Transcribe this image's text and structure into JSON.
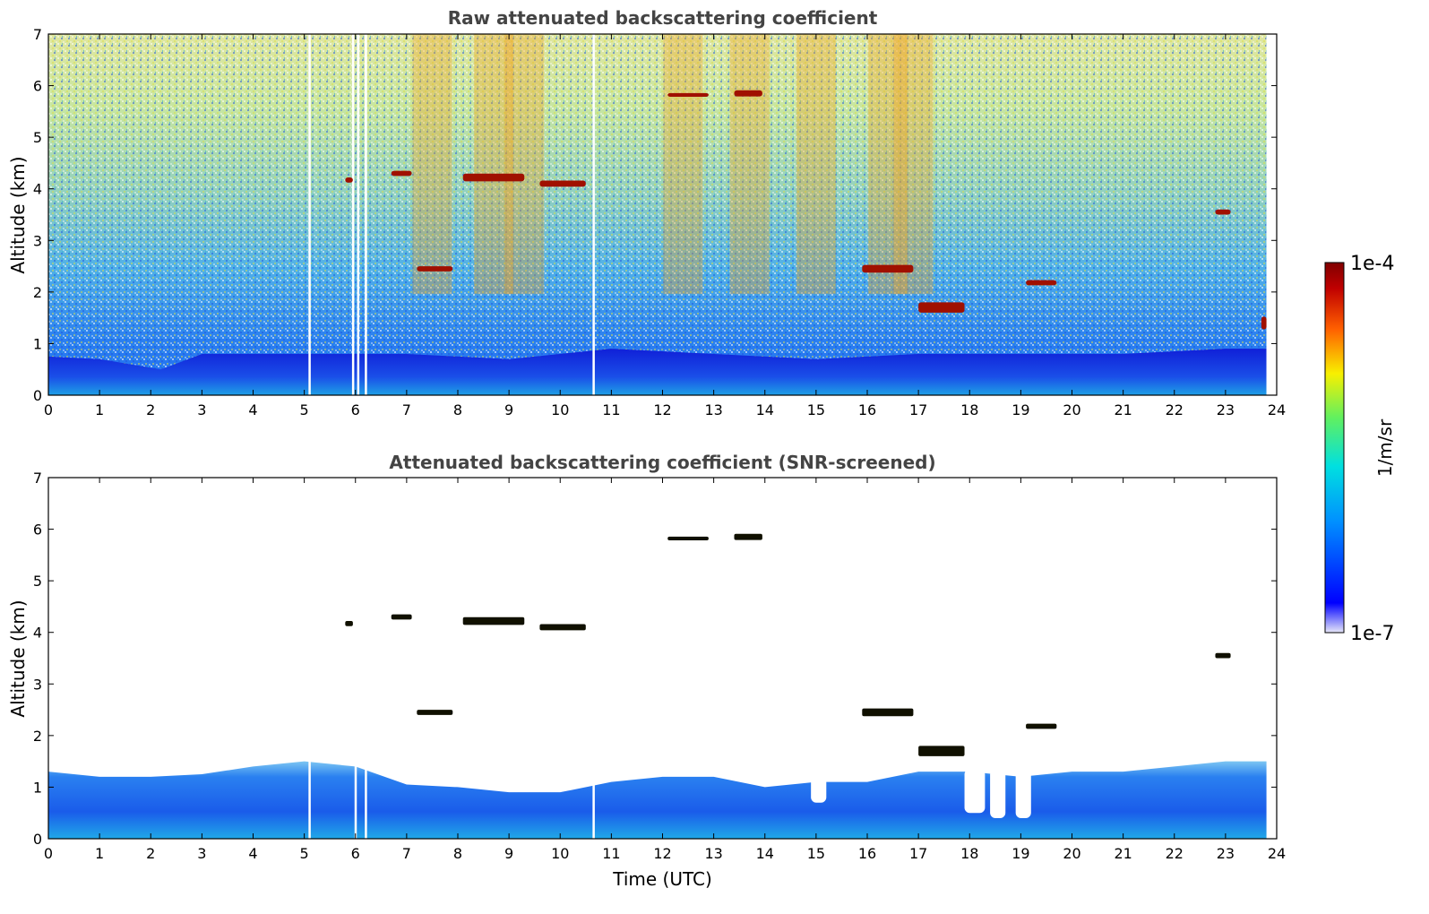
{
  "chart_data": [
    {
      "type": "heatmap",
      "title": "Raw attenuated backscattering coefficient",
      "xlabel": "",
      "ylabel": "Altitude (km)",
      "xlim": [
        0,
        24
      ],
      "ylim": [
        0,
        7
      ],
      "x_ticks": [
        "0",
        "1",
        "2",
        "3",
        "4",
        "5",
        "6",
        "7",
        "8",
        "9",
        "10",
        "11",
        "12",
        "13",
        "14",
        "15",
        "16",
        "17",
        "18",
        "19",
        "20",
        "21",
        "22",
        "23",
        "24"
      ],
      "y_ticks": [
        "0",
        "1",
        "2",
        "3",
        "4",
        "5",
        "6",
        "7"
      ],
      "data_end_time": 23.8,
      "boundary_layer_top_km": [
        [
          0,
          0.75
        ],
        [
          1,
          0.7
        ],
        [
          2.2,
          0.5
        ],
        [
          3,
          0.8
        ],
        [
          5,
          0.8
        ],
        [
          7,
          0.8
        ],
        [
          9,
          0.7
        ],
        [
          11,
          0.9
        ],
        [
          13,
          0.8
        ],
        [
          15,
          0.7
        ],
        [
          17,
          0.8
        ],
        [
          19,
          0.8
        ],
        [
          21,
          0.8
        ],
        [
          23,
          0.9
        ],
        [
          23.8,
          0.9
        ]
      ],
      "noisy_columns_utc": [
        7.5,
        8.7,
        9.3,
        12.4,
        13.7,
        15.0,
        16.4,
        16.9
      ],
      "dropout_columns_utc": [
        5.1,
        5.95,
        6.05,
        6.2,
        10.65
      ],
      "cloud_layers": [
        {
          "x0": 5.8,
          "x1": 5.95,
          "alt": 4.17,
          "thick": 0.1
        },
        {
          "x0": 6.7,
          "x1": 7.1,
          "alt": 4.3,
          "thick": 0.1
        },
        {
          "x0": 7.2,
          "x1": 7.9,
          "alt": 2.45,
          "thick": 0.1
        },
        {
          "x0": 8.1,
          "x1": 9.3,
          "alt": 4.22,
          "thick": 0.15
        },
        {
          "x0": 9.6,
          "x1": 10.5,
          "alt": 4.1,
          "thick": 0.12
        },
        {
          "x0": 12.1,
          "x1": 12.9,
          "alt": 5.82,
          "thick": 0.07
        },
        {
          "x0": 13.4,
          "x1": 13.95,
          "alt": 5.85,
          "thick": 0.12
        },
        {
          "x0": 15.9,
          "x1": 16.9,
          "alt": 2.45,
          "thick": 0.15
        },
        {
          "x0": 17.0,
          "x1": 17.9,
          "alt": 1.7,
          "thick": 0.2
        },
        {
          "x0": 19.1,
          "x1": 19.7,
          "alt": 2.18,
          "thick": 0.1
        },
        {
          "x0": 22.8,
          "x1": 23.1,
          "alt": 3.55,
          "thick": 0.1
        },
        {
          "x0": 23.7,
          "x1": 23.8,
          "alt": 1.4,
          "thick": 0.25
        }
      ]
    },
    {
      "type": "heatmap",
      "title": "Attenuated backscattering coefficient (SNR-screened)",
      "xlabel": "Time (UTC)",
      "ylabel": "Altitude (km)",
      "xlim": [
        0,
        24
      ],
      "ylim": [
        0,
        7
      ],
      "x_ticks": [
        "0",
        "1",
        "2",
        "3",
        "4",
        "5",
        "6",
        "7",
        "8",
        "9",
        "10",
        "11",
        "12",
        "13",
        "14",
        "15",
        "16",
        "17",
        "18",
        "19",
        "20",
        "21",
        "22",
        "23",
        "24"
      ],
      "y_ticks": [
        "0",
        "1",
        "2",
        "3",
        "4",
        "5",
        "6",
        "7"
      ],
      "data_end_time": 23.8,
      "screened_layer_top_km": [
        [
          0,
          1.3
        ],
        [
          1,
          1.2
        ],
        [
          2,
          1.2
        ],
        [
          3,
          1.25
        ],
        [
          4,
          1.4
        ],
        [
          5,
          1.5
        ],
        [
          6,
          1.4
        ],
        [
          7,
          1.05
        ],
        [
          8,
          1.0
        ],
        [
          9,
          0.9
        ],
        [
          10,
          0.9
        ],
        [
          11,
          1.1
        ],
        [
          12,
          1.2
        ],
        [
          13,
          1.2
        ],
        [
          14,
          1.0
        ],
        [
          15,
          1.1
        ],
        [
          16,
          1.1
        ],
        [
          17,
          1.3
        ],
        [
          18,
          1.3
        ],
        [
          19,
          1.2
        ],
        [
          20,
          1.3
        ],
        [
          21,
          1.3
        ],
        [
          22,
          1.4
        ],
        [
          23,
          1.5
        ],
        [
          23.8,
          1.5
        ]
      ],
      "cloud_layers": [
        {
          "x0": 5.8,
          "x1": 5.95,
          "alt": 4.17,
          "thick": 0.1
        },
        {
          "x0": 6.7,
          "x1": 7.1,
          "alt": 4.3,
          "thick": 0.1
        },
        {
          "x0": 7.2,
          "x1": 7.9,
          "alt": 2.45,
          "thick": 0.1
        },
        {
          "x0": 8.1,
          "x1": 9.3,
          "alt": 4.22,
          "thick": 0.15
        },
        {
          "x0": 9.6,
          "x1": 10.5,
          "alt": 4.1,
          "thick": 0.12
        },
        {
          "x0": 12.1,
          "x1": 12.9,
          "alt": 5.82,
          "thick": 0.07
        },
        {
          "x0": 13.4,
          "x1": 13.95,
          "alt": 5.85,
          "thick": 0.12
        },
        {
          "x0": 15.9,
          "x1": 16.9,
          "alt": 2.45,
          "thick": 0.15
        },
        {
          "x0": 17.0,
          "x1": 17.9,
          "alt": 1.7,
          "thick": 0.2
        },
        {
          "x0": 19.1,
          "x1": 19.7,
          "alt": 2.18,
          "thick": 0.1
        },
        {
          "x0": 22.8,
          "x1": 23.1,
          "alt": 3.55,
          "thick": 0.1
        }
      ]
    }
  ],
  "colorbar": {
    "max_label": "1e-4",
    "min_label": "1e-7",
    "unit_label": "1/m/sr",
    "colormap": [
      "#e8e8f8",
      "#0000ff",
      "#0090ff",
      "#00e0e0",
      "#60f060",
      "#f8f000",
      "#ff6000",
      "#c00000",
      "#800000"
    ]
  }
}
